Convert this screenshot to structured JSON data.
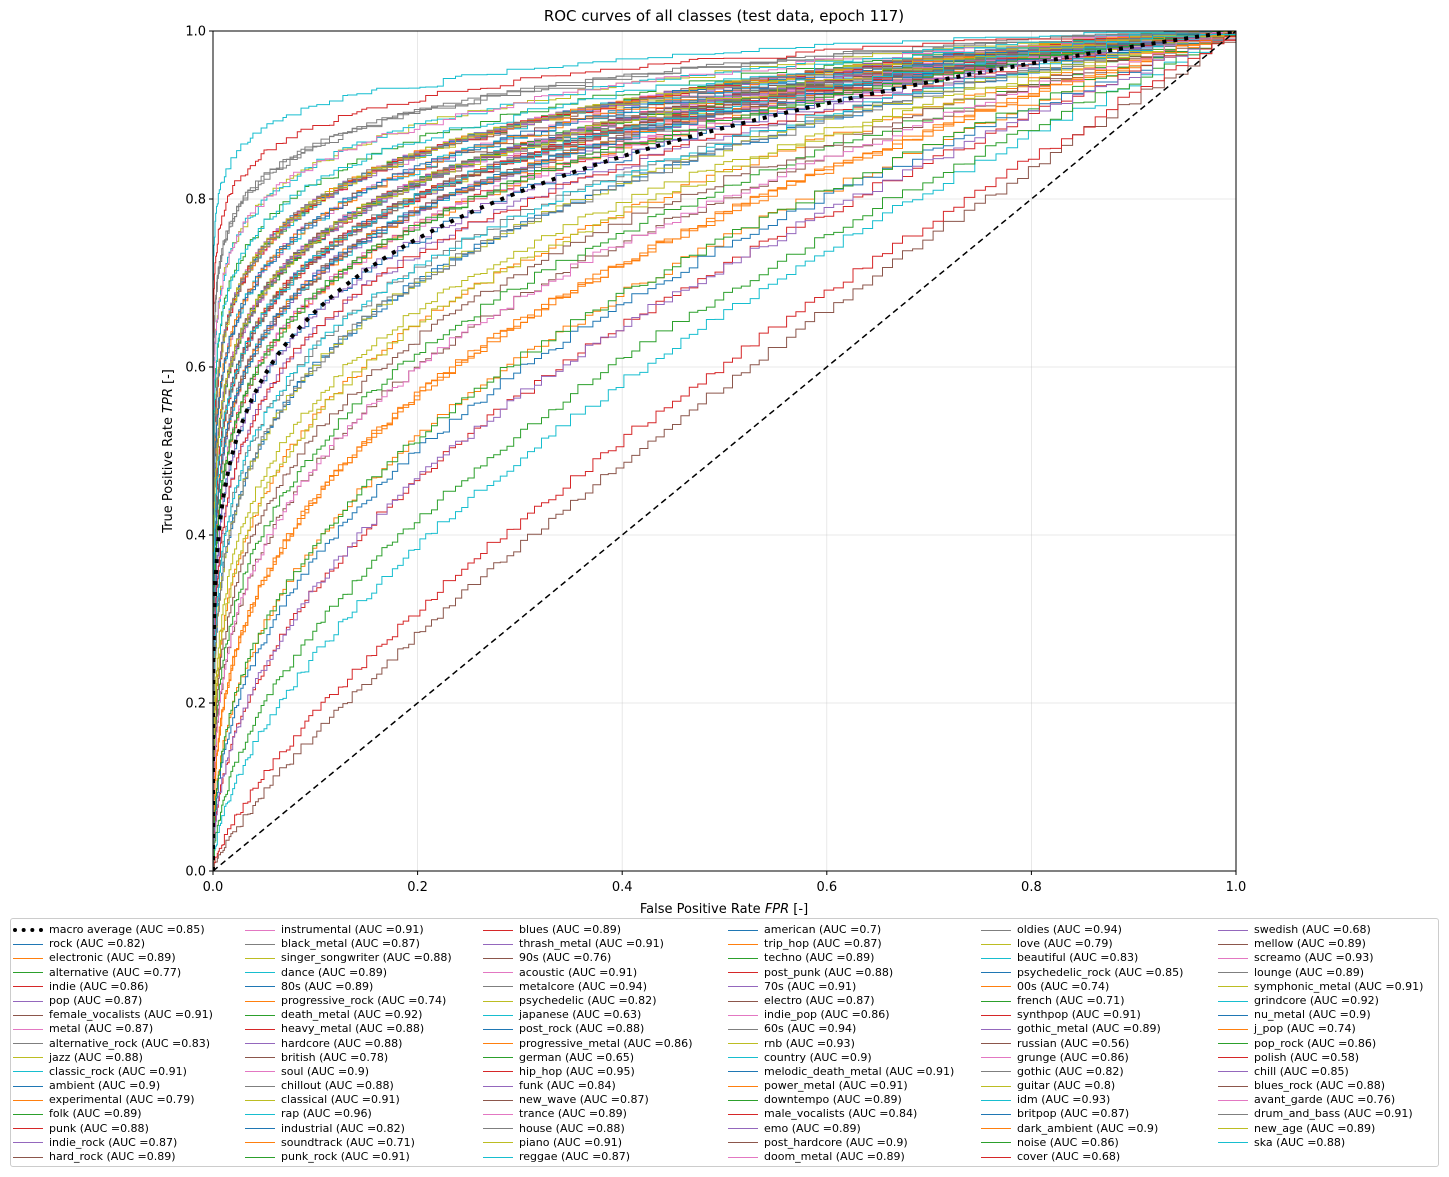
{
  "chart_data": {
    "type": "line",
    "title": "ROC curves of all classes (test data, epoch 117)",
    "xlabel": "False Positive Rate FPR [-]",
    "ylabel": "True Positive Rate TPR [-]",
    "xlabel_parts": [
      "False Positive Rate ",
      "FPR",
      " [-]"
    ],
    "ylabel_parts": [
      "True Positive Rate ",
      "TPR",
      " [-]"
    ],
    "xlim": [
      0,
      1
    ],
    "ylim": [
      0,
      1
    ],
    "xticks": [
      "0.0",
      "0.2",
      "0.4",
      "0.6",
      "0.8",
      "1.0"
    ],
    "yticks": [
      "0.0",
      "0.2",
      "0.4",
      "0.6",
      "0.8",
      "1.0"
    ],
    "grid": true,
    "legend_position": "bottom",
    "chance_line": {
      "x": [
        0,
        1
      ],
      "y": [
        0,
        1
      ],
      "color": "#000000",
      "style": "dashed"
    },
    "palette": [
      "#1f77b4",
      "#ff7f0e",
      "#2ca02c",
      "#d62728",
      "#9467bd",
      "#8c564b",
      "#e377c2",
      "#7f7f7f",
      "#bcbd22",
      "#17becf"
    ],
    "series": [
      {
        "name": "macro average",
        "auc": 0.85,
        "color": "#000000",
        "style": "dotted-thick"
      },
      {
        "name": "rock",
        "auc": 0.82
      },
      {
        "name": "electronic",
        "auc": 0.89
      },
      {
        "name": "alternative",
        "auc": 0.77
      },
      {
        "name": "indie",
        "auc": 0.86
      },
      {
        "name": "pop",
        "auc": 0.87
      },
      {
        "name": "female_vocalists",
        "auc": 0.91
      },
      {
        "name": "metal",
        "auc": 0.87
      },
      {
        "name": "alternative_rock",
        "auc": 0.83
      },
      {
        "name": "jazz",
        "auc": 0.88
      },
      {
        "name": "classic_rock",
        "auc": 0.91
      },
      {
        "name": "ambient",
        "auc": 0.9
      },
      {
        "name": "experimental",
        "auc": 0.79
      },
      {
        "name": "folk",
        "auc": 0.89
      },
      {
        "name": "punk",
        "auc": 0.88
      },
      {
        "name": "indie_rock",
        "auc": 0.87
      },
      {
        "name": "hard_rock",
        "auc": 0.89
      },
      {
        "name": "instrumental",
        "auc": 0.91
      },
      {
        "name": "black_metal",
        "auc": 0.87
      },
      {
        "name": "singer_songwriter",
        "auc": 0.88
      },
      {
        "name": "dance",
        "auc": 0.89
      },
      {
        "name": "80s",
        "auc": 0.89
      },
      {
        "name": "progressive_rock",
        "auc": 0.74
      },
      {
        "name": "death_metal",
        "auc": 0.92
      },
      {
        "name": "heavy_metal",
        "auc": 0.88
      },
      {
        "name": "hardcore",
        "auc": 0.88
      },
      {
        "name": "british",
        "auc": 0.78
      },
      {
        "name": "soul",
        "auc": 0.9
      },
      {
        "name": "chillout",
        "auc": 0.88
      },
      {
        "name": "classical",
        "auc": 0.91
      },
      {
        "name": "rap",
        "auc": 0.96
      },
      {
        "name": "industrial",
        "auc": 0.82
      },
      {
        "name": "soundtrack",
        "auc": 0.71
      },
      {
        "name": "punk_rock",
        "auc": 0.91
      },
      {
        "name": "blues",
        "auc": 0.89
      },
      {
        "name": "thrash_metal",
        "auc": 0.91
      },
      {
        "name": "90s",
        "auc": 0.76
      },
      {
        "name": "acoustic",
        "auc": 0.91
      },
      {
        "name": "metalcore",
        "auc": 0.94
      },
      {
        "name": "psychedelic",
        "auc": 0.82
      },
      {
        "name": "japanese",
        "auc": 0.63
      },
      {
        "name": "post_rock",
        "auc": 0.88
      },
      {
        "name": "progressive_metal",
        "auc": 0.86
      },
      {
        "name": "german",
        "auc": 0.65
      },
      {
        "name": "hip_hop",
        "auc": 0.95
      },
      {
        "name": "funk",
        "auc": 0.84
      },
      {
        "name": "new_wave",
        "auc": 0.87
      },
      {
        "name": "trance",
        "auc": 0.89
      },
      {
        "name": "house",
        "auc": 0.88
      },
      {
        "name": "piano",
        "auc": 0.91
      },
      {
        "name": "reggae",
        "auc": 0.87
      },
      {
        "name": "american",
        "auc": 0.7
      },
      {
        "name": "trip_hop",
        "auc": 0.87
      },
      {
        "name": "techno",
        "auc": 0.89
      },
      {
        "name": "post_punk",
        "auc": 0.88
      },
      {
        "name": "70s",
        "auc": 0.91
      },
      {
        "name": "electro",
        "auc": 0.87
      },
      {
        "name": "indie_pop",
        "auc": 0.86
      },
      {
        "name": "60s",
        "auc": 0.94
      },
      {
        "name": "rnb",
        "auc": 0.93
      },
      {
        "name": "country",
        "auc": 0.9
      },
      {
        "name": "melodic_death_metal",
        "auc": 0.91
      },
      {
        "name": "power_metal",
        "auc": 0.91
      },
      {
        "name": "downtempo",
        "auc": 0.89
      },
      {
        "name": "male_vocalists",
        "auc": 0.84
      },
      {
        "name": "emo",
        "auc": 0.89
      },
      {
        "name": "post_hardcore",
        "auc": 0.9
      },
      {
        "name": "doom_metal",
        "auc": 0.89
      },
      {
        "name": "oldies",
        "auc": 0.94
      },
      {
        "name": "love",
        "auc": 0.79
      },
      {
        "name": "beautiful",
        "auc": 0.83
      },
      {
        "name": "psychedelic_rock",
        "auc": 0.85
      },
      {
        "name": "00s",
        "auc": 0.74
      },
      {
        "name": "french",
        "auc": 0.71
      },
      {
        "name": "synthpop",
        "auc": 0.91
      },
      {
        "name": "gothic_metal",
        "auc": 0.89
      },
      {
        "name": "russian",
        "auc": 0.56
      },
      {
        "name": "grunge",
        "auc": 0.86
      },
      {
        "name": "gothic",
        "auc": 0.82
      },
      {
        "name": "guitar",
        "auc": 0.8
      },
      {
        "name": "idm",
        "auc": 0.93
      },
      {
        "name": "britpop",
        "auc": 0.87
      },
      {
        "name": "dark_ambient",
        "auc": 0.9
      },
      {
        "name": "noise",
        "auc": 0.86
      },
      {
        "name": "cover",
        "auc": 0.68
      },
      {
        "name": "swedish",
        "auc": 0.68
      },
      {
        "name": "mellow",
        "auc": 0.89
      },
      {
        "name": "screamo",
        "auc": 0.93
      },
      {
        "name": "lounge",
        "auc": 0.89
      },
      {
        "name": "symphonic_metal",
        "auc": 0.91
      },
      {
        "name": "grindcore",
        "auc": 0.92
      },
      {
        "name": "nu_metal",
        "auc": 0.9
      },
      {
        "name": "j_pop",
        "auc": 0.74
      },
      {
        "name": "pop_rock",
        "auc": 0.86
      },
      {
        "name": "polish",
        "auc": 0.58
      },
      {
        "name": "chill",
        "auc": 0.85
      },
      {
        "name": "blues_rock",
        "auc": 0.88
      },
      {
        "name": "avant_garde",
        "auc": 0.76
      },
      {
        "name": "drum_and_bass",
        "auc": 0.91
      },
      {
        "name": "new_age",
        "auc": 0.89
      },
      {
        "name": "ska",
        "auc": 0.88
      }
    ]
  }
}
